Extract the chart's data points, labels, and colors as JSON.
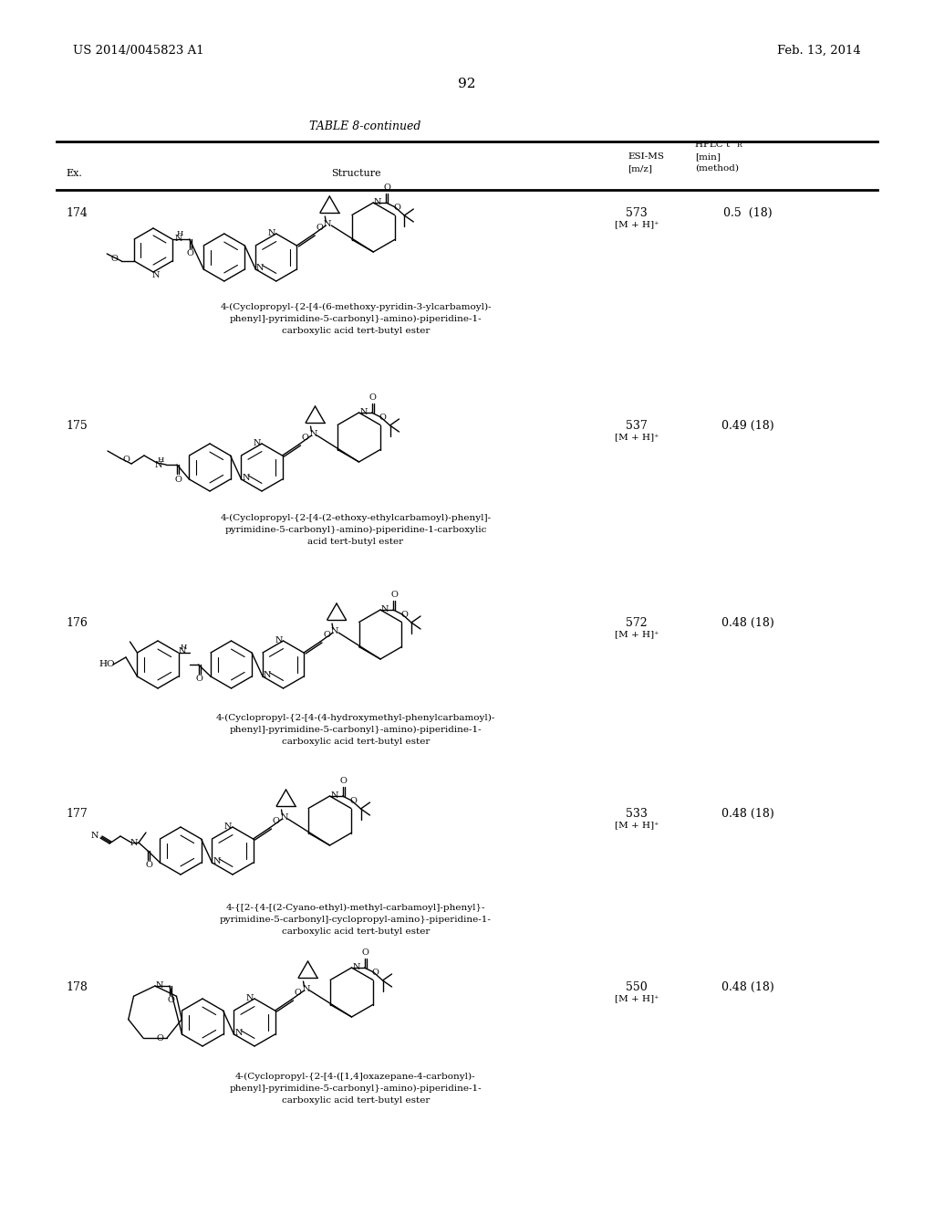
{
  "page_header_left": "US 2014/0045823 A1",
  "page_header_right": "Feb. 13, 2014",
  "page_number": "92",
  "table_title": "TABLE 8-continued",
  "background_color": "#ffffff",
  "text_color": "#000000",
  "entries": [
    {
      "ex": "174",
      "esi_ms_val": "573",
      "esi_ms_ion": "[M + H]⁺",
      "hplc": "0.5  (18)",
      "name_lines": [
        "4-(Cyclopropyl-{2-[4-(6-methoxy-pyridin-3-ylcarbamoyl)-",
        "phenyl]-pyrimidine-5-carbonyl}-amino)-piperidine-1-",
        "carboxylic acid tert-butyl ester"
      ]
    },
    {
      "ex": "175",
      "esi_ms_val": "537",
      "esi_ms_ion": "[M + H]⁺",
      "hplc": "0.49 (18)",
      "name_lines": [
        "4-(Cyclopropyl-{2-[4-(2-ethoxy-ethylcarbamoyl)-phenyl]-",
        "pyrimidine-5-carbonyl}-amino)-piperidine-1-carboxylic",
        "acid tert-butyl ester"
      ]
    },
    {
      "ex": "176",
      "esi_ms_val": "572",
      "esi_ms_ion": "[M + H]⁺",
      "hplc": "0.48 (18)",
      "name_lines": [
        "4-(Cyclopropyl-{2-[4-(4-hydroxymethyl-phenylcarbamoyl)-",
        "phenyl]-pyrimidine-5-carbonyl}-amino)-piperidine-1-",
        "carboxylic acid tert-butyl ester"
      ]
    },
    {
      "ex": "177",
      "esi_ms_val": "533",
      "esi_ms_ion": "[M + H]⁺",
      "hplc": "0.48 (18)",
      "name_lines": [
        "4-{[2-{4-[(2-Cyano-ethyl)-methyl-carbamoyl]-phenyl}-",
        "pyrimidine-5-carbonyl]-cyclopropyl-amino}-piperidine-1-",
        "carboxylic acid tert-butyl ester"
      ]
    },
    {
      "ex": "178",
      "esi_ms_val": "550",
      "esi_ms_ion": "[M + H]⁺",
      "hplc": "0.48 (18)",
      "name_lines": [
        "4-(Cyclopropyl-{2-[4-([1,4]oxazepane-4-carbonyl)-",
        "phenyl]-pyrimidine-5-carbonyl}-amino)-piperidine-1-",
        "carboxylic acid tert-butyl ester"
      ]
    }
  ]
}
